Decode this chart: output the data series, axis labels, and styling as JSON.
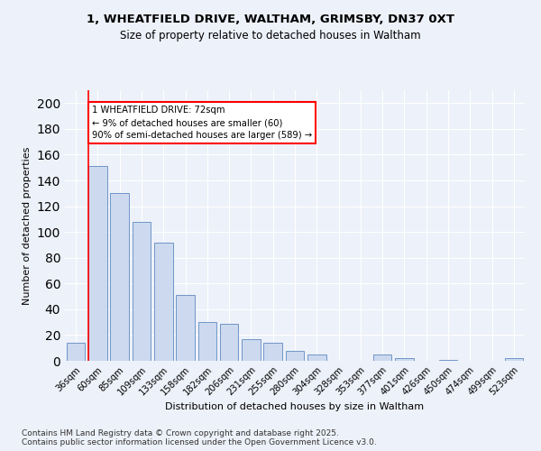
{
  "title1": "1, WHEATFIELD DRIVE, WALTHAM, GRIMSBY, DN37 0XT",
  "title2": "Size of property relative to detached houses in Waltham",
  "xlabel": "Distribution of detached houses by size in Waltham",
  "ylabel": "Number of detached properties",
  "categories": [
    "36sqm",
    "60sqm",
    "85sqm",
    "109sqm",
    "133sqm",
    "158sqm",
    "182sqm",
    "206sqm",
    "231sqm",
    "255sqm",
    "280sqm",
    "304sqm",
    "328sqm",
    "353sqm",
    "377sqm",
    "401sqm",
    "426sqm",
    "450sqm",
    "474sqm",
    "499sqm",
    "523sqm"
  ],
  "values": [
    14,
    151,
    130,
    108,
    92,
    51,
    30,
    29,
    17,
    14,
    8,
    5,
    0,
    0,
    5,
    2,
    0,
    1,
    0,
    0,
    2
  ],
  "bar_color": "#ccd9ef",
  "bar_edge_color": "#7096c8",
  "red_line_x": 1.0,
  "annotation_text": "1 WHEATFIELD DRIVE: 72sqm\n← 9% of detached houses are smaller (60)\n90% of semi-detached houses are larger (589) →",
  "annotation_box_color": "white",
  "annotation_box_edge": "red",
  "ylim": [
    0,
    210
  ],
  "yticks": [
    0,
    20,
    40,
    60,
    80,
    100,
    120,
    140,
    160,
    180,
    200
  ],
  "footer": "Contains HM Land Registry data © Crown copyright and database right 2025.\nContains public sector information licensed under the Open Government Licence v3.0.",
  "background_color": "#edf1f9",
  "grid_color": "white"
}
